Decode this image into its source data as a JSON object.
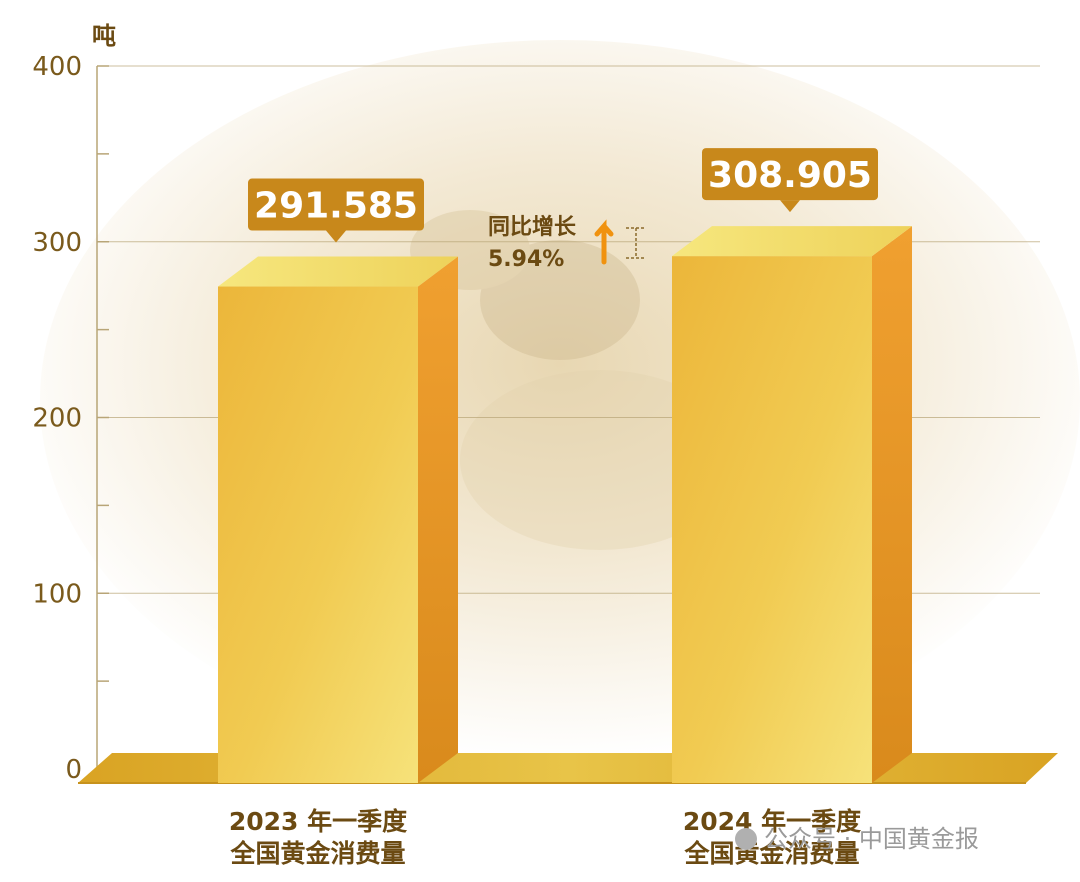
{
  "chart_data": {
    "type": "bar",
    "unit": "吨",
    "categories": [
      {
        "line1": "2023 年一季度",
        "line2": "全国黄金消费量"
      },
      {
        "line1": "2024 年一季度",
        "line2": "全国黄金消费量"
      }
    ],
    "values": [
      291.585,
      308.905
    ],
    "value_labels": [
      "291.585",
      "308.905"
    ],
    "ylim": [
      0,
      400
    ],
    "yticks": [
      0,
      100,
      200,
      300,
      400
    ],
    "annotation": {
      "line1": "同比增长",
      "line2": "5.94%"
    },
    "colors": {
      "bar_front": "#e9b12e",
      "bar_light": "#f4dc6b",
      "bar_side": "#d98d1d",
      "label_bg": "#c8881b",
      "axis": "#b8a577",
      "arrow": "#f0920f"
    }
  },
  "watermark": {
    "text": "公众号 · 中国黄金报"
  }
}
